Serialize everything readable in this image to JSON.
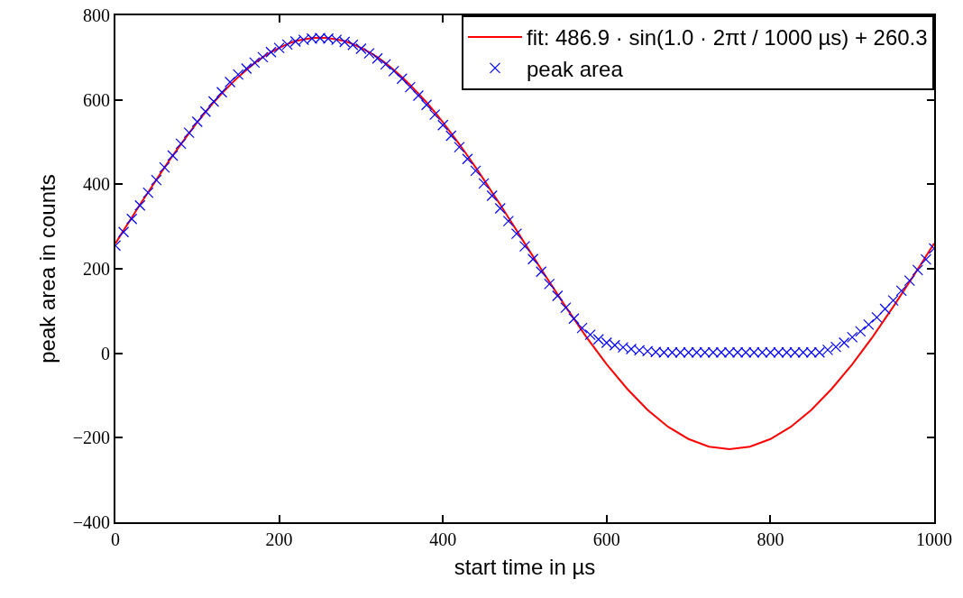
{
  "chart_data": {
    "type": "line",
    "xlabel": "start time in µs",
    "ylabel": "peak area in counts",
    "xlim": [
      0,
      1000
    ],
    "xticks": [
      0,
      200,
      400,
      600,
      800,
      1000
    ],
    "ylim": [
      -400,
      800
    ],
    "yticks": [
      {
        "value": -400,
        "label": "−400"
      },
      {
        "value": -200,
        "label": "−200"
      },
      0,
      200,
      400,
      600,
      800
    ],
    "grid": false,
    "legend": "top right",
    "series": [
      {
        "type": "line",
        "name": "fit: 486.9 · sin(1.0 · 2πt / 1000 µs) + 260.3",
        "color": "#ff0000",
        "line_style": "solid",
        "x": [
          0,
          10,
          20,
          30,
          40,
          50,
          60,
          70,
          80,
          90,
          100,
          110,
          120,
          130,
          140,
          150,
          160,
          170,
          180,
          190,
          200,
          210,
          220,
          230,
          240,
          250,
          260,
          270,
          280,
          290,
          300,
          310,
          320,
          330,
          340,
          350,
          360,
          370,
          380,
          390,
          400,
          410,
          420,
          430,
          440,
          450,
          460,
          470,
          480,
          490,
          500,
          525,
          550,
          575,
          600,
          625,
          650,
          675,
          700,
          725,
          750,
          775,
          800,
          825,
          850,
          875,
          900,
          925,
          950,
          975,
          1000
        ],
        "values": [
          260,
          291,
          321,
          352,
          381,
          411,
          440,
          468,
          495,
          521,
          547,
          571,
          594,
          615,
          635,
          654,
          671,
          687,
          701,
          713,
          723,
          732,
          739,
          743,
          746,
          747,
          746,
          743,
          739,
          732,
          723,
          713,
          701,
          687,
          671,
          654,
          635,
          615,
          594,
          571,
          547,
          521,
          495,
          468,
          440,
          411,
          381,
          352,
          321,
          291,
          260,
          184,
          110,
          39,
          -26,
          -84,
          -134,
          -174,
          -203,
          -221,
          -227,
          -221,
          -203,
          -174,
          -134,
          -84,
          -26,
          39,
          110,
          184,
          260
        ]
      },
      {
        "type": "scatter",
        "name": "peak area",
        "color": "#0000ff",
        "marker": "cross",
        "x": [
          0,
          10,
          20,
          30,
          40,
          50,
          60,
          70,
          80,
          90,
          100,
          110,
          120,
          130,
          140,
          150,
          160,
          170,
          180,
          190,
          200,
          210,
          220,
          230,
          240,
          250,
          260,
          270,
          280,
          290,
          300,
          310,
          320,
          330,
          340,
          350,
          360,
          370,
          380,
          390,
          400,
          410,
          420,
          430,
          440,
          450,
          460,
          470,
          480,
          490,
          500,
          510,
          520,
          530,
          540,
          550,
          560,
          570,
          580,
          590,
          600,
          610,
          620,
          630,
          640,
          650,
          660,
          670,
          680,
          690,
          700,
          710,
          720,
          730,
          740,
          750,
          760,
          770,
          780,
          790,
          800,
          810,
          820,
          830,
          840,
          850,
          860,
          870,
          880,
          890,
          900,
          910,
          920,
          930,
          940,
          950,
          960,
          970,
          980,
          990,
          1000
        ],
        "values": [
          255,
          287,
          318,
          350,
          380,
          410,
          440,
          468,
          496,
          522,
          548,
          572,
          596,
          618,
          642,
          660,
          674,
          688,
          701,
          713,
          723,
          731,
          738,
          742,
          745,
          746,
          745,
          742,
          737,
          730,
          721,
          710,
          698,
          684,
          668,
          650,
          630,
          610,
          588,
          565,
          540,
          515,
          488,
          460,
          432,
          402,
          373,
          343,
          313,
          283,
          253,
          223,
          193,
          164,
          136,
          108,
          82,
          60,
          44,
          33,
          25,
          19,
          14,
          10,
          7,
          5,
          3,
          2,
          2,
          2,
          2,
          2,
          2,
          2,
          2,
          2,
          2,
          2,
          2,
          2,
          2,
          2,
          2,
          2,
          2,
          2,
          2,
          8,
          15,
          25,
          38,
          52,
          68,
          85,
          105,
          125,
          148,
          172,
          197,
          222,
          248
        ]
      }
    ]
  }
}
